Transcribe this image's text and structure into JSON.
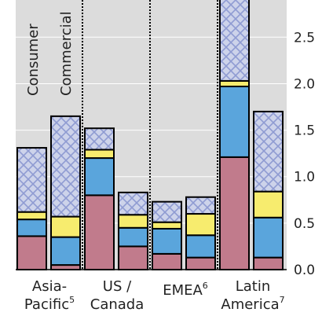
{
  "chart_data": {
    "type": "bar",
    "stacked": true,
    "title": "",
    "xlabel": "",
    "ylabel": "",
    "ylim": [
      0,
      2.9
    ],
    "yticks": [
      0.0,
      0.5,
      1.0,
      1.5,
      2.0,
      2.5
    ],
    "ytick_labels": [
      "0.0",
      "0.5",
      "1.0",
      "1.5",
      "2.0",
      "2.5"
    ],
    "grid": "horizontal",
    "yaxis_position": "right",
    "group_labels": [
      {
        "line1": "Asia-",
        "line2": "Pacific",
        "sup": "5"
      },
      {
        "line1": "US /",
        "line2": "Canada",
        "sup": ""
      },
      {
        "line1": "EMEA",
        "line2": "",
        "sup": "6"
      },
      {
        "line1": "Latin",
        "line2": "America",
        "sup": "7"
      }
    ],
    "subgroup_labels": [
      "Consumer",
      "Commercial"
    ],
    "series_colors": [
      "#c17b8c",
      "#5aa5dc",
      "#f7ec6e",
      "#cdd3ea"
    ],
    "hatch_color": "#8f9bd2",
    "bars": [
      {
        "group": 0,
        "subgroup": "Consumer",
        "values": [
          0.36,
          0.18,
          0.08,
          0.69
        ]
      },
      {
        "group": 0,
        "subgroup": "Commercial",
        "values": [
          0.05,
          0.3,
          0.22,
          1.08
        ]
      },
      {
        "group": 1,
        "subgroup": "Consumer",
        "values": [
          0.8,
          0.4,
          0.09,
          0.23
        ]
      },
      {
        "group": 1,
        "subgroup": "Commercial",
        "values": [
          0.25,
          0.2,
          0.14,
          0.24
        ]
      },
      {
        "group": 2,
        "subgroup": "Consumer",
        "values": [
          0.17,
          0.27,
          0.07,
          0.22
        ]
      },
      {
        "group": 2,
        "subgroup": "Commercial",
        "values": [
          0.13,
          0.24,
          0.23,
          0.18
        ]
      },
      {
        "group": 3,
        "subgroup": "Consumer",
        "values": [
          1.21,
          0.76,
          0.06,
          1.03
        ]
      },
      {
        "group": 3,
        "subgroup": "Commercial",
        "values": [
          0.13,
          0.43,
          0.28,
          0.86
        ]
      }
    ]
  }
}
